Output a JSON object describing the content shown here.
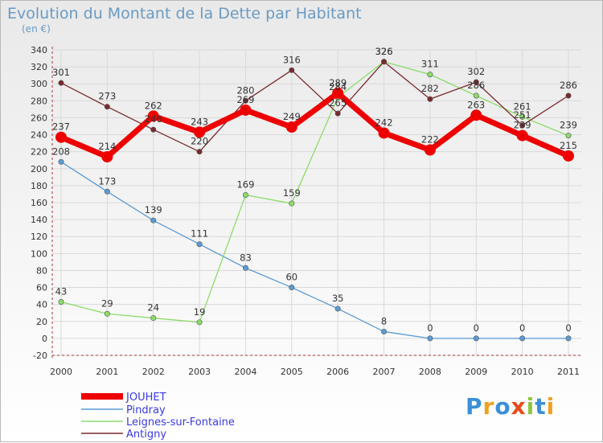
{
  "chart_data": {
    "type": "line",
    "title": "Evolution du Montant de la Dette par Habitant",
    "subtitle": "(en €)",
    "x": [
      "2000",
      "2001",
      "2002",
      "2003",
      "2004",
      "2005",
      "2006",
      "2007",
      "2008",
      "2009",
      "2010",
      "2011"
    ],
    "ylim": [
      -20,
      340
    ],
    "yticks": [
      -20,
      0,
      20,
      40,
      60,
      80,
      100,
      120,
      140,
      160,
      180,
      200,
      220,
      240,
      260,
      280,
      300,
      320,
      340
    ],
    "grid": true,
    "legend_position": "bottom-left",
    "series": [
      {
        "name": "JOUHET",
        "color": "#ee0000",
        "values": [
          237,
          214,
          262,
          243,
          269,
          249,
          289,
          242,
          222,
          263,
          239,
          215
        ]
      },
      {
        "name": "Pindray",
        "color": "#5b9bd5",
        "values": [
          208,
          173,
          139,
          111,
          83,
          60,
          35,
          8,
          0,
          0,
          0,
          0
        ]
      },
      {
        "name": "Leignes-sur-Fontaine",
        "color": "#8ddc6b",
        "values": [
          43,
          29,
          24,
          19,
          169,
          159,
          284,
          326,
          311,
          286,
          261,
          239
        ]
      },
      {
        "name": "Antigny",
        "color": "#7a2a30",
        "values": [
          301,
          273,
          246,
          220,
          280,
          316,
          265,
          326,
          282,
          302,
          251,
          286
        ]
      }
    ]
  },
  "logo": {
    "text": "Proxiti",
    "letters": [
      "P",
      "r",
      "o",
      "x",
      "i",
      "t",
      "i"
    ],
    "colors": [
      "#3b8fd9",
      "#f0a020",
      "#3b8fd9",
      "#e84a1a",
      "#8fc63f",
      "#3b8fd9",
      "#f0a020"
    ]
  }
}
